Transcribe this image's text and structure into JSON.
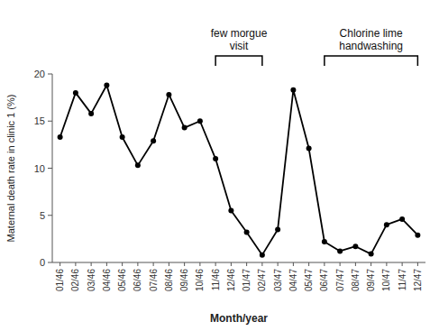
{
  "chart_data": {
    "type": "line",
    "xlabel": "Month/year",
    "ylabel": "Maternal death rate in clinic 1 (%)",
    "categories": [
      "01/46",
      "02/46",
      "03/46",
      "04/46",
      "05/46",
      "06/46",
      "07/46",
      "08/46",
      "09/46",
      "10/46",
      "11/46",
      "12/46",
      "01/47",
      "02/47",
      "03/47",
      "04/47",
      "05/47",
      "06/47",
      "07/47",
      "08/47",
      "09/47",
      "10/47",
      "11/47",
      "12/47"
    ],
    "values": [
      13.3,
      18.0,
      15.8,
      18.8,
      13.3,
      10.3,
      12.9,
      17.8,
      14.3,
      15.0,
      11.0,
      5.5,
      3.2,
      0.8,
      3.5,
      18.3,
      12.1,
      2.2,
      1.2,
      1.7,
      0.9,
      4.0,
      4.6,
      2.9
    ],
    "ylim": [
      0,
      20
    ],
    "yticks": [
      0,
      5,
      10,
      15,
      20
    ],
    "color": "black",
    "marker": "circle",
    "grid": false,
    "annotations": [
      {
        "text": "few morgue\nvisit",
        "x_start": "11/46",
        "x_end": "02/47"
      },
      {
        "text": "Chlorine lime\nhandwashing",
        "x_start": "06/47",
        "x_end": "12/47"
      }
    ]
  }
}
